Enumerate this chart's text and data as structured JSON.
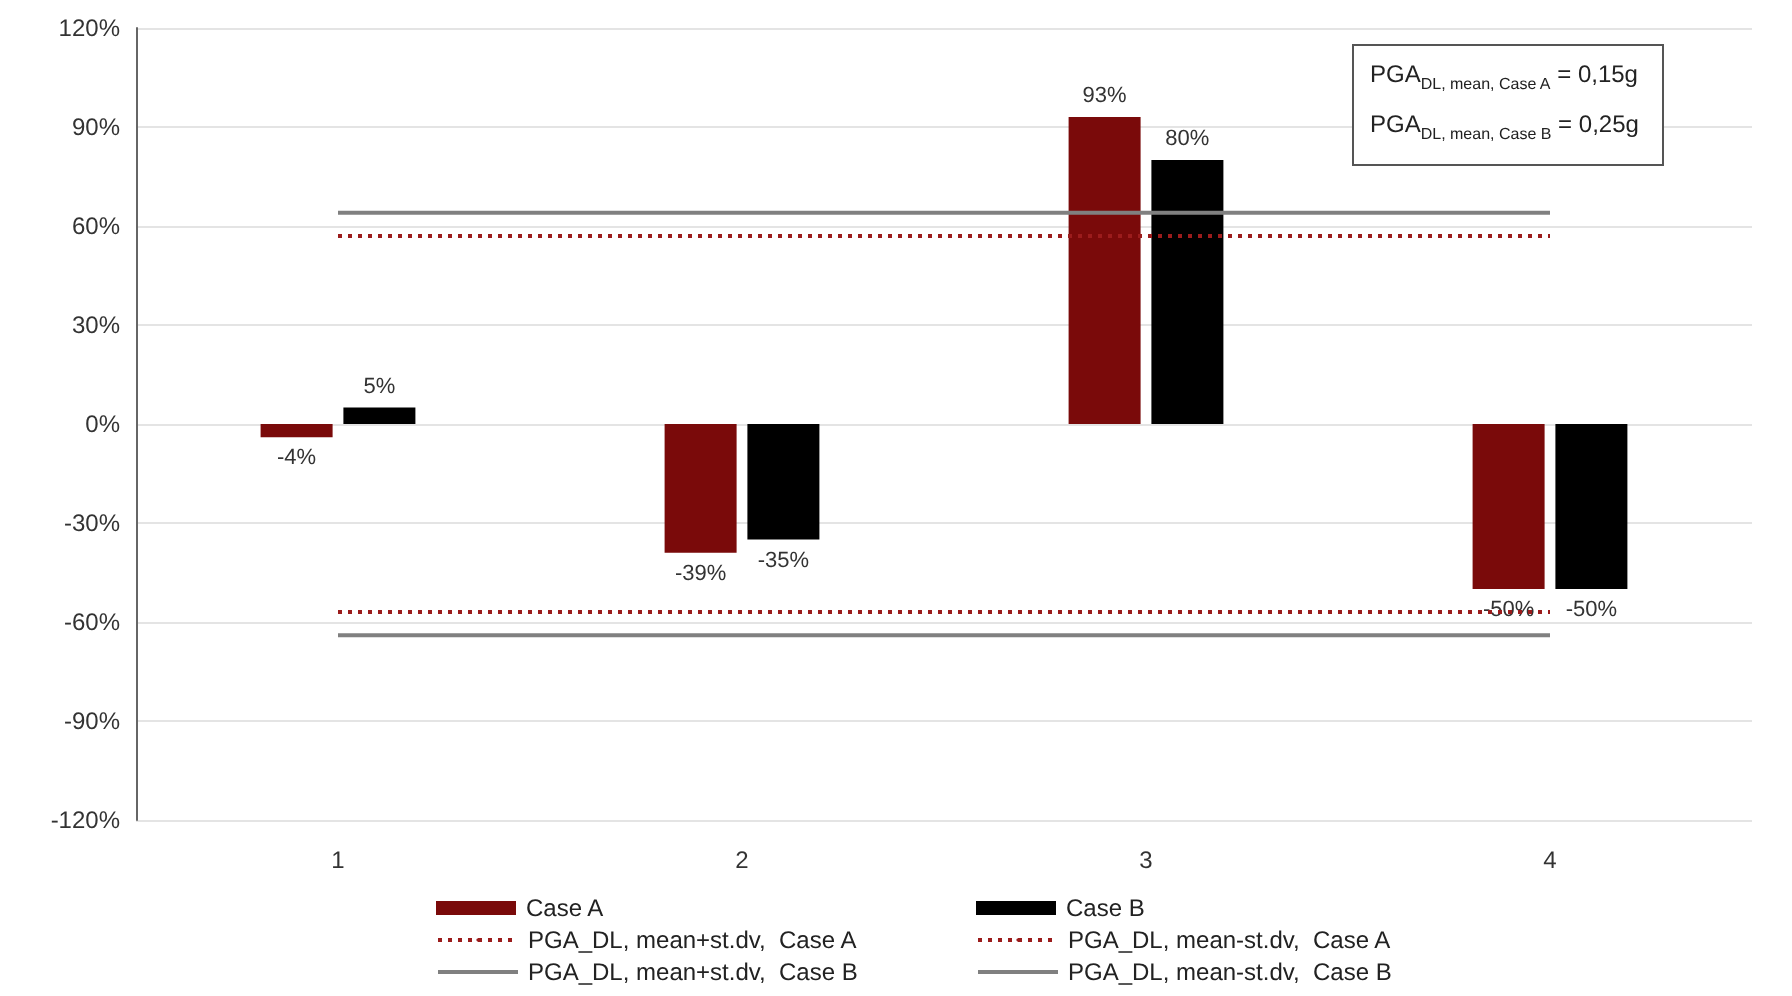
{
  "chart_data": {
    "type": "bar",
    "categories": [
      "1",
      "2",
      "3",
      "4"
    ],
    "series": [
      {
        "name": "Case A",
        "color": "#7a0a0a",
        "values": [
          -4,
          -39,
          93,
          -50
        ],
        "value_labels": [
          "-4%",
          "-39%",
          "93%",
          "-50%"
        ]
      },
      {
        "name": "Case B",
        "color": "#000000",
        "values": [
          5,
          -35,
          80,
          -50
        ],
        "value_labels": [
          "5%",
          "-35%",
          "80%",
          "-50%"
        ]
      },
      {
        "name": "PGA_DL, mean+st.dv,  Case A",
        "type": "line",
        "color": "#9b1c1c",
        "line_style": "dotted",
        "values": [
          57,
          57,
          57,
          57
        ]
      },
      {
        "name": "PGA_DL, mean-st.dv,  Case A",
        "type": "line",
        "color": "#9b1c1c",
        "line_style": "dotted",
        "values": [
          -57,
          -57,
          -57,
          -57
        ]
      },
      {
        "name": "PGA_DL, mean+st.dv,  Case B",
        "type": "line",
        "color": "#808080",
        "line_style": "solid",
        "values": [
          64,
          64,
          64,
          64
        ]
      },
      {
        "name": "PGA_DL, mean-st.dv,  Case B",
        "type": "line",
        "color": "#808080",
        "line_style": "solid",
        "values": [
          -64,
          -64,
          -64,
          -64
        ]
      }
    ],
    "ylim": [
      -120,
      120
    ],
    "yticks": [
      {
        "value": -120,
        "label": "-120%"
      },
      {
        "value": -90,
        "label": "-90%"
      },
      {
        "value": -60,
        "label": "-60%"
      },
      {
        "value": -30,
        "label": "-30%"
      },
      {
        "value": 0,
        "label": "0%"
      },
      {
        "value": 30,
        "label": "30%"
      },
      {
        "value": 60,
        "label": "60%"
      },
      {
        "value": 90,
        "label": "90%"
      },
      {
        "value": 120,
        "label": "120%"
      }
    ],
    "grid": "y",
    "legend": "bottom",
    "marker": "none",
    "annotations": [
      "PGA$_{DL, mean, Case A}$ = 0,15g",
      "PGA$_{DL, mean, Case B}$ = 0,25g"
    ]
  }
}
